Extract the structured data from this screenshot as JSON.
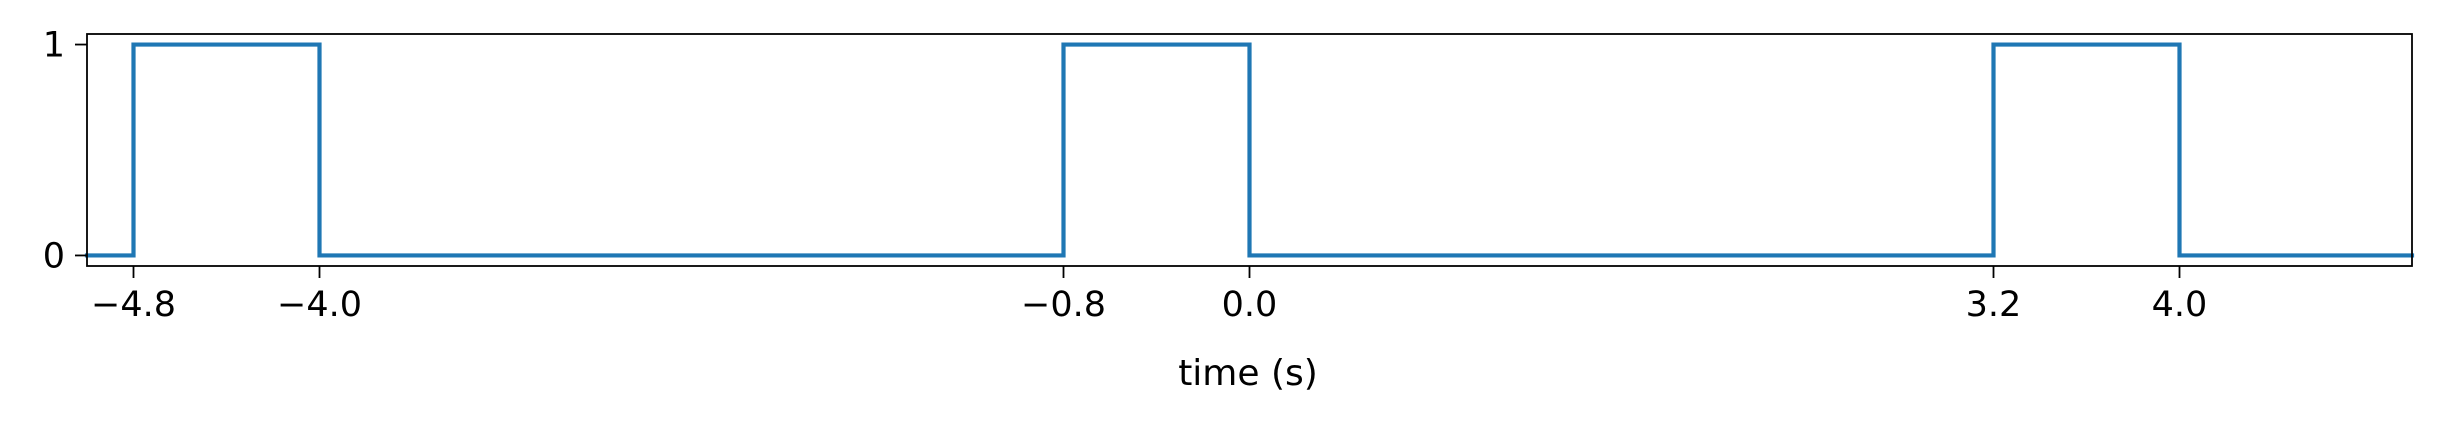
{
  "chart_data": {
    "type": "line",
    "step": true,
    "title": "",
    "xlabel": "time (s)",
    "ylabel": "",
    "xlim": [
      -5.0,
      5.0
    ],
    "ylim": [
      -0.05,
      1.05
    ],
    "grid": false,
    "legend": "none",
    "xticks": [
      -4.8,
      -4.0,
      -0.8,
      0.0,
      3.2,
      4.0
    ],
    "xtick_labels": [
      "−4.8",
      "−4.0",
      "−0.8",
      "0.0",
      "3.2",
      "4.0"
    ],
    "yticks": [
      0,
      1
    ],
    "ytick_labels": [
      "0",
      "1"
    ],
    "series": [
      {
        "color": "#1f77b4",
        "x": [
          -5.0,
          -4.8,
          -4.8,
          -4.0,
          -4.0,
          -0.8,
          -0.8,
          0.0,
          0.0,
          3.2,
          3.2,
          4.0,
          4.0,
          5.0
        ],
        "y": [
          0,
          0,
          1,
          1,
          0,
          0,
          1,
          1,
          0,
          0,
          1,
          1,
          0,
          0
        ]
      }
    ]
  }
}
